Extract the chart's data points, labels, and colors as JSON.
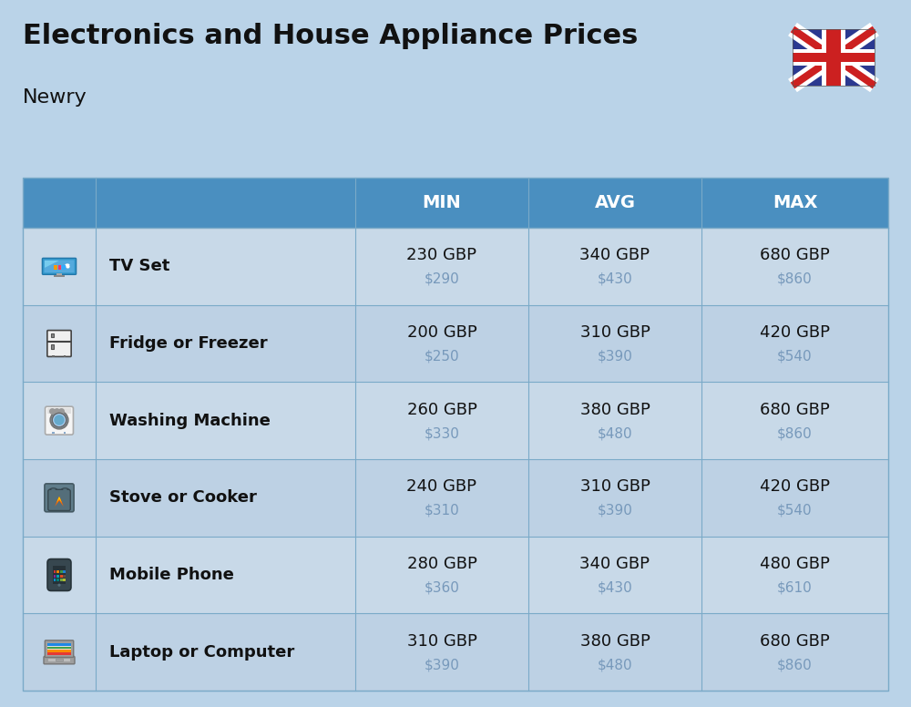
{
  "title": "Electronics and House Appliance Prices",
  "subtitle": "Newry",
  "bg_color": "#bad3e8",
  "header_color": "#4a8fc0",
  "header_text_color": "#ffffff",
  "divider_color": "#7aaac8",
  "columns": [
    "MIN",
    "AVG",
    "MAX"
  ],
  "rows": [
    {
      "name": "TV Set",
      "min_gbp": "230 GBP",
      "min_usd": "$290",
      "avg_gbp": "340 GBP",
      "avg_usd": "$430",
      "max_gbp": "680 GBP",
      "max_usd": "$860"
    },
    {
      "name": "Fridge or Freezer",
      "min_gbp": "200 GBP",
      "min_usd": "$250",
      "avg_gbp": "310 GBP",
      "avg_usd": "$390",
      "max_gbp": "420 GBP",
      "max_usd": "$540"
    },
    {
      "name": "Washing Machine",
      "min_gbp": "260 GBP",
      "min_usd": "$330",
      "avg_gbp": "380 GBP",
      "avg_usd": "$480",
      "max_gbp": "680 GBP",
      "max_usd": "$860"
    },
    {
      "name": "Stove or Cooker",
      "min_gbp": "240 GBP",
      "min_usd": "$310",
      "avg_gbp": "310 GBP",
      "avg_usd": "$390",
      "max_gbp": "420 GBP",
      "max_usd": "$540"
    },
    {
      "name": "Mobile Phone",
      "min_gbp": "280 GBP",
      "min_usd": "$360",
      "avg_gbp": "340 GBP",
      "avg_usd": "$430",
      "max_gbp": "480 GBP",
      "max_usd": "$610"
    },
    {
      "name": "Laptop or Computer",
      "min_gbp": "310 GBP",
      "min_usd": "$390",
      "avg_gbp": "380 GBP",
      "avg_usd": "$480",
      "max_gbp": "680 GBP",
      "max_usd": "$860"
    }
  ],
  "row_colors": [
    "#c8d9e8",
    "#bdd1e4",
    "#c8d9e8",
    "#bdd1e4",
    "#c8d9e8",
    "#bdd1e4"
  ],
  "usd_color": "#7799bb",
  "name_color": "#111111"
}
